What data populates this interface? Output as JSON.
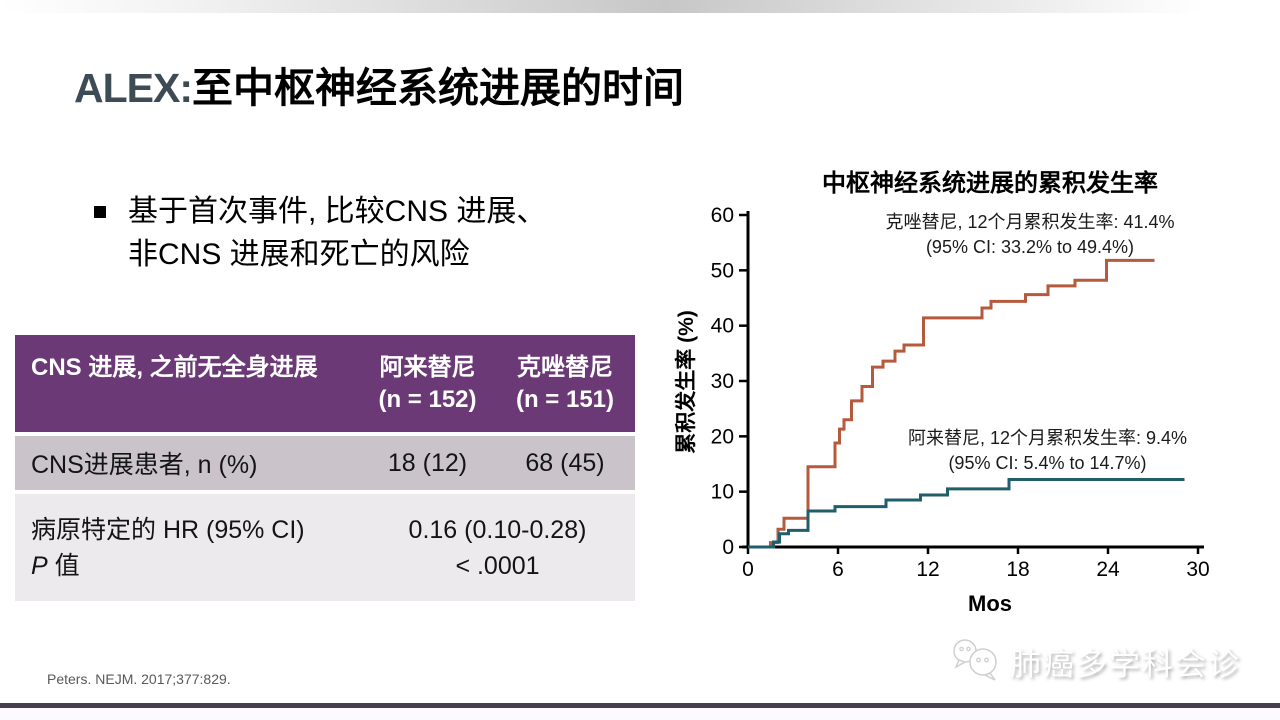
{
  "slide": {
    "title_prefix": "ALEX:",
    "title_text": "至中枢神经系统进展的时间",
    "bullet_line1": "基于首次事件, 比较CNS 进展、",
    "bullet_line2": "非CNS 进展和死亡的风险",
    "citation": "Peters. NEJM. 2017;377:829.",
    "watermark_text": "肺癌多学科会诊"
  },
  "table": {
    "header_col1": "CNS 进展, 之前无全身进展",
    "header_col2_drug": "阿来替尼",
    "header_col2_n": "(n = 152)",
    "header_col3_drug": "克唑替尼",
    "header_col3_n": "(n = 151)",
    "row1_label": "CNS进展患者, n (%)",
    "row1_alectinib": "18 (12)",
    "row1_crizotinib": "68 (45)",
    "row2_label_line1": "病原特定的 HR (95% CI)",
    "row2_label_line2_italic": "P",
    "row2_label_line2_rest": " 值",
    "row2_value_line1": "0.16 (0.10-0.28)",
    "row2_value_line2": "< .0001",
    "header_bg": "#6b3a76",
    "row1_bg": "#cac4ca",
    "row2_bg": "#edeaee"
  },
  "chart_data": {
    "type": "line",
    "step": "after",
    "title": "中枢神经系统进展的累积发生率",
    "xlabel": "Mos",
    "ylabel": "累积发生率 (%)",
    "xlim": [
      0,
      30
    ],
    "ylim": [
      0,
      60
    ],
    "xticks": [
      0,
      6,
      12,
      18,
      24,
      30
    ],
    "yticks": [
      0,
      10,
      20,
      30,
      40,
      50,
      60
    ],
    "grid": false,
    "legend_position": "inline-annotations",
    "series": [
      {
        "name": "克唑替尼",
        "color": "#b55a3d",
        "annotation_line1": "克唑替尼, 12个月累积发生率: 41.4%",
        "annotation_line2": "(95% CI: 33.2% to 49.4%)",
        "points": [
          [
            0,
            0
          ],
          [
            1.5,
            0.8
          ],
          [
            2,
            3.2
          ],
          [
            2.4,
            5.2
          ],
          [
            4,
            14.5
          ],
          [
            5.8,
            18.8
          ],
          [
            6.1,
            21.3
          ],
          [
            6.4,
            23
          ],
          [
            6.9,
            26.4
          ],
          [
            7.6,
            29
          ],
          [
            8.3,
            32.5
          ],
          [
            9,
            33.6
          ],
          [
            9.8,
            35.4
          ],
          [
            10.4,
            36.5
          ],
          [
            11.7,
            41.4
          ],
          [
            15.6,
            43.2
          ],
          [
            16.2,
            44.4
          ],
          [
            18.5,
            45.6
          ],
          [
            20,
            47.2
          ],
          [
            21.8,
            48.2
          ],
          [
            23.9,
            51.8
          ],
          [
            27.1,
            51.8
          ]
        ]
      },
      {
        "name": "阿来替尼",
        "color": "#205e6b",
        "annotation_line1": "阿来替尼, 12个月累积发生率: 9.4%",
        "annotation_line2": "(95% CI: 5.4% to 14.7%)",
        "points": [
          [
            0,
            0
          ],
          [
            1.7,
            0.9
          ],
          [
            2.1,
            2.4
          ],
          [
            2.7,
            3
          ],
          [
            4,
            6.5
          ],
          [
            5.8,
            7.3
          ],
          [
            9.2,
            8.5
          ],
          [
            11.5,
            9.4
          ],
          [
            13.3,
            10.5
          ],
          [
            17.4,
            12.2
          ],
          [
            29.1,
            12.2
          ]
        ]
      }
    ]
  },
  "colors": {
    "title_prefix": "#3d4b55",
    "axis": "#000000",
    "bottom_bar": "#473e4c"
  }
}
